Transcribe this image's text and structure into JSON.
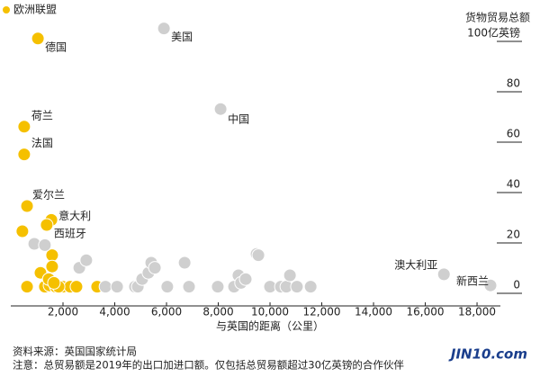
{
  "chart_data": {
    "type": "scatter",
    "x_label": "与英国的距离（公里）",
    "y_label": "货物贸易总额",
    "xlim": [
      0,
      19000
    ],
    "ylim": [
      0,
      105
    ],
    "xticks": [
      {
        "value": 2000,
        "label": "2,000"
      },
      {
        "value": 4000,
        "label": "4,000"
      },
      {
        "value": 6000,
        "label": "6,000"
      },
      {
        "value": 8000,
        "label": "8,000"
      },
      {
        "value": 10000,
        "label": "10,000"
      },
      {
        "value": 12000,
        "label": "12,000"
      },
      {
        "value": 14000,
        "label": "14,000"
      },
      {
        "value": 16000,
        "label": "16,000"
      },
      {
        "value": 18000,
        "label": "18,000"
      }
    ],
    "yticks": [
      0,
      20,
      40,
      60,
      80,
      {
        "value": 100,
        "label": "100亿英镑"
      }
    ],
    "series": [
      {
        "name": "欧洲联盟",
        "color": "#f5c000",
        "x": [
          1030,
          500,
          500,
          610,
          1550,
          1370,
          430,
          610,
          1130,
          1580,
          1580,
          1300,
          1480,
          1720,
          1990,
          2280,
          2520,
          3320,
          1830,
          1450,
          1650
        ],
        "values": [
          99,
          64,
          53,
          32.5,
          27,
          25,
          22.5,
          0.5,
          6,
          13,
          8.5,
          0.5,
          1,
          0.5,
          0.5,
          0.5,
          0.5,
          0.5,
          0.5,
          3.5,
          2
        ],
        "point_labels": [
          "德国",
          "荷兰",
          "法国",
          "爱尔兰",
          "意大利",
          "西班牙",
          null,
          null,
          null,
          null,
          null,
          null,
          null,
          null,
          null,
          null,
          null,
          null,
          null,
          null,
          null
        ]
      },
      {
        "color": "#cfcfcf",
        "x": [
          5900,
          8090,
          16720,
          18520,
          890,
          1300,
          2630,
          2900,
          3640,
          4090,
          4780,
          4890,
          5060,
          5300,
          5410,
          5550,
          6030,
          6700,
          6870,
          7980,
          8610,
          8780,
          8880,
          9060,
          9480,
          9550,
          10000,
          10420,
          10630,
          10770,
          11040,
          11570
        ],
        "values": [
          103,
          71,
          5.4,
          1,
          17.5,
          17,
          8,
          11,
          0.5,
          0.5,
          0.5,
          0.5,
          3.5,
          6,
          10,
          8,
          0.5,
          10,
          0.5,
          0.5,
          0.5,
          5,
          2,
          3.5,
          13.5,
          13,
          0.5,
          0.5,
          0.5,
          5,
          0.5,
          0.5
        ],
        "point_labels": [
          "美国",
          "中国",
          "澳大利亚",
          "新西兰",
          null,
          null,
          null,
          null,
          null,
          null,
          null,
          null,
          null,
          null,
          null,
          null,
          null,
          null,
          null,
          null,
          null,
          null,
          null,
          null,
          null,
          null,
          null,
          null,
          null,
          null,
          null,
          null
        ]
      }
    ],
    "source": "资料来源：英国国家统计局",
    "note": "注意：总贸易额是2019年的出口加进口额。仅包括总贸易额超过30亿英镑的合作伙伴",
    "logo": "JIN10.com"
  }
}
